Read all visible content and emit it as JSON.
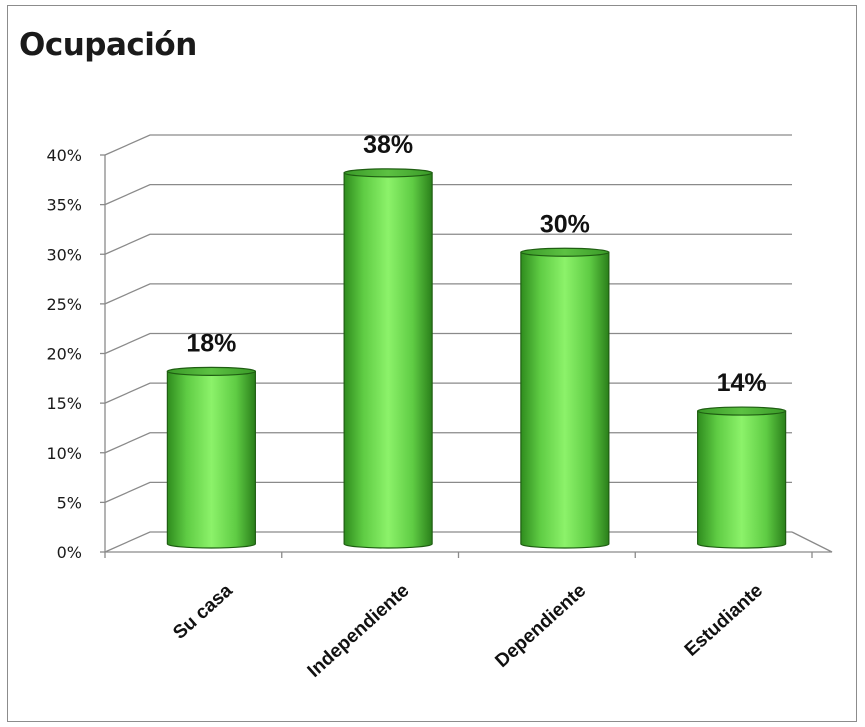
{
  "chart_data": {
    "type": "bar",
    "title": "Ocupación",
    "categories": [
      "Su casa",
      "Independiente",
      "Dependiente",
      "Estudiante"
    ],
    "values": [
      18,
      38,
      30,
      14
    ],
    "value_labels": [
      "18%",
      "38%",
      "30%",
      "14%"
    ],
    "ylim": [
      0,
      40
    ],
    "yticks": [
      "0%",
      "5%",
      "10%",
      "15%",
      "20%",
      "25%",
      "30%",
      "35%",
      "40%"
    ],
    "grid": true,
    "legend": "none",
    "bar_color": "#7fe25c",
    "bar_dark_color": "#2e8a1c"
  }
}
